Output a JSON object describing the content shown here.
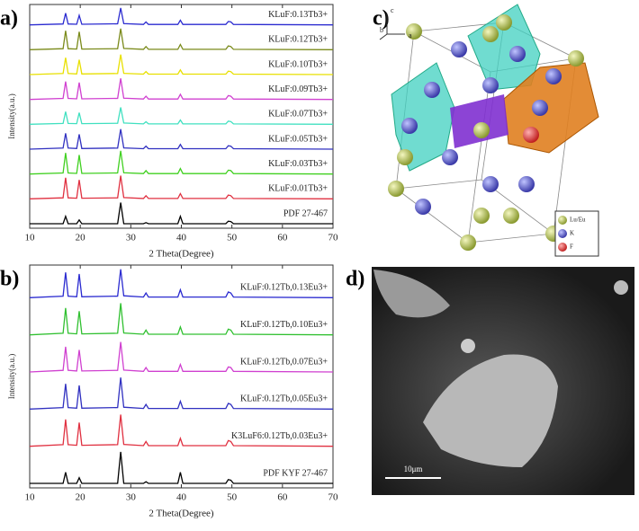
{
  "chart_data": [
    {
      "type": "line",
      "label": "a)",
      "xlabel": "2 Theta(Degree)",
      "ylabel": "Intensity(a.u.)",
      "xlim": [
        10,
        70
      ],
      "xticks": [
        10,
        20,
        30,
        40,
        50,
        60,
        70
      ],
      "x": [
        10,
        16.6,
        17.1,
        17.6,
        19.3,
        19.8,
        20.3,
        27.4,
        28.0,
        28.6,
        32.5,
        33.0,
        33.5,
        39.3,
        39.8,
        40.3,
        48.8,
        49.3,
        49.8,
        50.3,
        70
      ],
      "series": [
        {
          "name": "KLuF:0.13Tb3+",
          "color": "#2b2bd0",
          "values": [
            0,
            4,
            55,
            4,
            3,
            45,
            3,
            5,
            80,
            6,
            2,
            14,
            2,
            2,
            22,
            2,
            2,
            16,
            14,
            2,
            0
          ]
        },
        {
          "name": "KLuF:0.12Tb3+",
          "color": "#7a8a1a",
          "values": [
            0,
            5,
            90,
            5,
            3,
            85,
            3,
            5,
            100,
            6,
            2,
            15,
            2,
            2,
            25,
            2,
            2,
            18,
            15,
            2,
            0
          ]
        },
        {
          "name": "KLuF:0.10Tb3+",
          "color": "#e8e000",
          "values": [
            0,
            5,
            80,
            5,
            3,
            70,
            3,
            5,
            95,
            6,
            2,
            14,
            2,
            2,
            22,
            2,
            2,
            16,
            14,
            2,
            0
          ]
        },
        {
          "name": "KLuF:0.09Tb3+",
          "color": "#d040d0",
          "values": [
            0,
            5,
            85,
            5,
            3,
            80,
            3,
            5,
            100,
            6,
            2,
            15,
            2,
            2,
            24,
            2,
            2,
            18,
            15,
            2,
            0
          ]
        },
        {
          "name": "KLuF:0.07Tb3+",
          "color": "#40e0c0",
          "values": [
            0,
            4,
            60,
            4,
            3,
            55,
            3,
            5,
            80,
            6,
            2,
            12,
            2,
            2,
            20,
            2,
            2,
            15,
            13,
            2,
            0
          ]
        },
        {
          "name": "KLuF:0.05Tb3+",
          "color": "#3030c0",
          "values": [
            0,
            5,
            75,
            5,
            3,
            70,
            3,
            5,
            95,
            6,
            2,
            14,
            2,
            2,
            22,
            2,
            2,
            16,
            14,
            2,
            0
          ]
        },
        {
          "name": "KLuF:0.03Tb3+",
          "color": "#40d020",
          "values": [
            0,
            5,
            100,
            5,
            3,
            90,
            3,
            5,
            110,
            6,
            2,
            16,
            2,
            2,
            26,
            2,
            2,
            18,
            16,
            2,
            0
          ]
        },
        {
          "name": "KLuF:0.01Tb3+",
          "color": "#e03040",
          "values": [
            0,
            5,
            100,
            5,
            3,
            90,
            3,
            5,
            110,
            6,
            2,
            15,
            2,
            2,
            25,
            2,
            2,
            18,
            15,
            2,
            0
          ]
        },
        {
          "name": "PDF 27-467",
          "color": "#000000",
          "values": [
            0,
            0,
            35,
            0,
            0,
            18,
            0,
            0,
            100,
            0,
            0,
            5,
            0,
            0,
            35,
            0,
            0,
            12,
            10,
            0,
            0
          ]
        }
      ]
    },
    {
      "type": "line",
      "label": "b)",
      "xlabel": "2 Theta(Degree)",
      "ylabel": "Intensity(a.u.)",
      "xlim": [
        10,
        70
      ],
      "xticks": [
        10,
        20,
        30,
        40,
        50,
        60,
        70
      ],
      "x": [
        10,
        16.6,
        17.1,
        17.6,
        19.3,
        19.8,
        20.3,
        27.4,
        28.0,
        28.6,
        32.5,
        33.0,
        33.5,
        39.3,
        39.8,
        40.3,
        48.8,
        49.3,
        49.8,
        50.3,
        70
      ],
      "series": [
        {
          "name": "KLuF:0.12Tb,0.13Eu3+",
          "color": "#2b2bd0",
          "values": [
            0,
            5,
            80,
            5,
            3,
            75,
            3,
            5,
            90,
            6,
            2,
            15,
            2,
            2,
            25,
            2,
            2,
            18,
            15,
            2,
            0
          ]
        },
        {
          "name": "KLuF:0.12Tb,0.10Eu3+",
          "color": "#30c030",
          "values": [
            0,
            5,
            85,
            5,
            3,
            75,
            3,
            5,
            100,
            6,
            2,
            15,
            2,
            2,
            25,
            2,
            2,
            18,
            15,
            2,
            0
          ]
        },
        {
          "name": "KLuF:0.12Tb,0.07Eu3+",
          "color": "#d040d0",
          "values": [
            0,
            5,
            80,
            5,
            3,
            70,
            3,
            5,
            95,
            6,
            2,
            14,
            2,
            2,
            24,
            2,
            2,
            16,
            14,
            2,
            0
          ]
        },
        {
          "name": "KLuF:0.12Tb,0.05Eu3+",
          "color": "#3030c0",
          "values": [
            0,
            5,
            80,
            5,
            3,
            75,
            3,
            5,
            100,
            6,
            2,
            15,
            2,
            2,
            25,
            2,
            2,
            18,
            15,
            2,
            0
          ]
        },
        {
          "name": "K3LuF6:0.12Tb,0.03Eu3+",
          "color": "#e03040",
          "values": [
            0,
            5,
            85,
            5,
            3,
            75,
            3,
            5,
            100,
            6,
            2,
            15,
            2,
            2,
            25,
            2,
            2,
            18,
            15,
            2,
            0
          ]
        },
        {
          "name": "PDF  KYF  27-467",
          "color": "#000000",
          "values": [
            0,
            0,
            35,
            0,
            0,
            18,
            0,
            0,
            100,
            0,
            0,
            5,
            0,
            0,
            35,
            0,
            0,
            12,
            10,
            0,
            0
          ]
        }
      ]
    }
  ],
  "crystal": {
    "label": "c)",
    "axes": [
      "c",
      "b",
      "a"
    ],
    "legend": [
      "Lu/Eu",
      "K",
      "F"
    ]
  },
  "sem": {
    "label": "d)",
    "scale_bar": "10μm"
  }
}
